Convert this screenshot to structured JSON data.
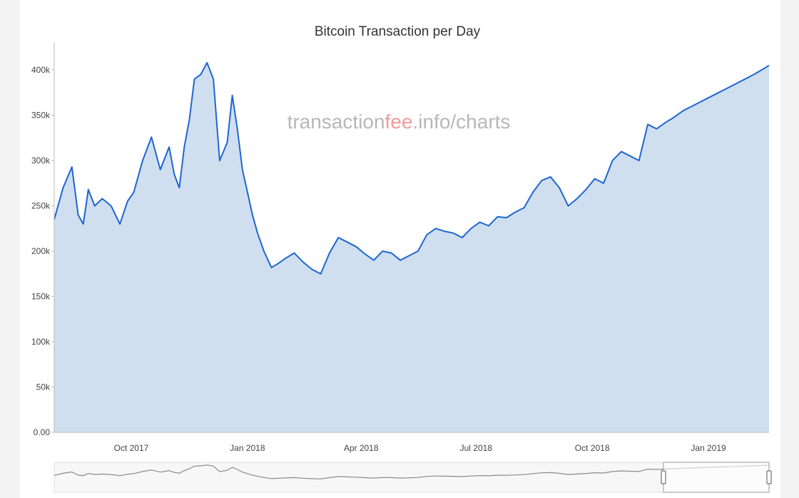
{
  "chart_data": {
    "type": "area",
    "title": "Bitcoin Transaction per Day",
    "watermark": {
      "prefix": "transaction",
      "accent": "fee",
      "suffix": ".info/charts"
    },
    "x_tick_labels": [
      "Oct 2017",
      "Jan 2018",
      "Apr 2018",
      "Jul 2018",
      "Oct 2018",
      "Jan 2019"
    ],
    "y_tick_labels": [
      "0.00",
      "50k",
      "100k",
      "150k",
      "200k",
      "250k",
      "300k",
      "350k",
      "400k"
    ],
    "ylim": [
      0,
      430000
    ],
    "xlim": [
      "2017-08-01",
      "2019-02-18"
    ],
    "grid": false,
    "line_color": "#1f66d1",
    "fill_color": "#cfdff0",
    "series": [
      {
        "x": [
          "2017-08-01",
          "2017-08-08",
          "2017-08-15",
          "2017-08-20",
          "2017-08-24",
          "2017-08-28",
          "2017-09-02",
          "2017-09-08",
          "2017-09-15",
          "2017-09-22",
          "2017-09-28",
          "2017-10-03",
          "2017-10-10",
          "2017-10-17",
          "2017-10-24",
          "2017-10-31",
          "2017-11-04",
          "2017-11-08",
          "2017-11-12",
          "2017-11-16",
          "2017-11-20",
          "2017-11-25",
          "2017-11-30",
          "2017-12-05",
          "2017-12-10",
          "2017-12-16",
          "2017-12-20",
          "2017-12-24",
          "2017-12-28",
          "2018-01-01",
          "2018-01-05",
          "2018-01-09",
          "2018-01-14",
          "2018-01-20",
          "2018-01-25",
          "2018-01-31",
          "2018-02-07",
          "2018-02-14",
          "2018-02-21",
          "2018-02-28",
          "2018-03-07",
          "2018-03-14",
          "2018-03-21",
          "2018-03-28",
          "2018-04-04",
          "2018-04-11",
          "2018-04-18",
          "2018-04-25",
          "2018-05-02",
          "2018-05-09",
          "2018-05-16",
          "2018-05-23",
          "2018-05-30",
          "2018-06-06",
          "2018-06-13",
          "2018-06-20",
          "2018-06-27",
          "2018-07-04",
          "2018-07-11",
          "2018-07-18",
          "2018-07-25",
          "2018-08-01",
          "2018-08-08",
          "2018-08-15",
          "2018-08-22",
          "2018-08-29",
          "2018-09-05",
          "2018-09-12",
          "2018-09-19",
          "2018-09-26",
          "2018-10-03",
          "2018-10-10",
          "2018-10-17",
          "2018-10-24",
          "2018-10-31",
          "2018-11-07",
          "2018-11-14",
          "2018-11-21",
          "2018-11-28",
          "2018-12-05",
          "2018-12-12",
          "2018-12-19",
          "2018-12-26",
          "2019-01-02",
          "2019-01-09",
          "2019-01-16",
          "2019-01-23",
          "2019-01-30",
          "2019-02-06",
          "2019-02-12",
          "2019-02-18"
        ],
        "values": [
          235000,
          270000,
          293000,
          240000,
          230000,
          268000,
          250000,
          258000,
          250000,
          230000,
          255000,
          265000,
          300000,
          326000,
          290000,
          315000,
          285000,
          270000,
          315000,
          345000,
          390000,
          395000,
          408000,
          390000,
          300000,
          320000,
          372000,
          335000,
          290000,
          265000,
          240000,
          220000,
          200000,
          182000,
          186000,
          192000,
          198000,
          188000,
          180000,
          175000,
          198000,
          215000,
          210000,
          205000,
          197000,
          190000,
          200000,
          198000,
          190000,
          195000,
          200000,
          218000,
          225000,
          222000,
          220000,
          215000,
          225000,
          232000,
          228000,
          238000,
          237000,
          243000,
          248000,
          265000,
          278000,
          282000,
          270000,
          250000,
          258000,
          268000,
          280000,
          275000,
          300000,
          310000,
          305000,
          300000,
          340000,
          335000,
          342000,
          348000,
          355000,
          360000,
          365000,
          370000,
          375000,
          380000,
          385000,
          390000,
          395000,
          400000,
          405000
        ]
      }
    ]
  }
}
